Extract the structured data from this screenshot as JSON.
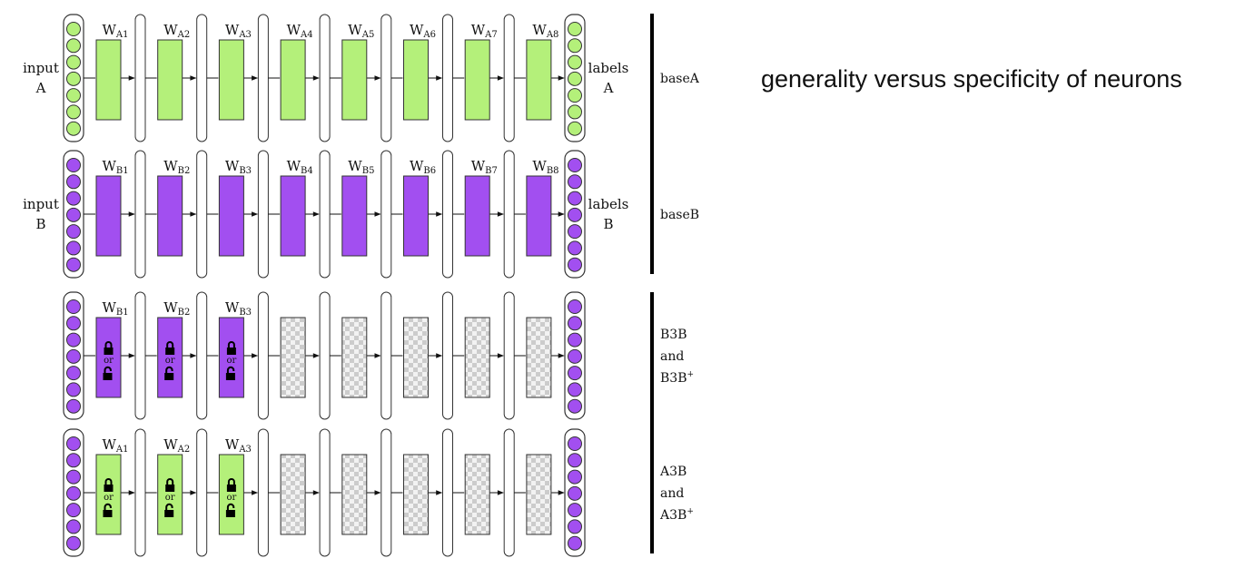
{
  "heading": "generality versus specificity of neurons",
  "colors": {
    "green": "#b4f07a",
    "purple": "#a24ff0",
    "checker_dark": "#cccccc",
    "checker_light": "#f2f2f2",
    "stroke": "#333333"
  },
  "lock_or": "or",
  "rows": [
    {
      "input_label": [
        "input",
        "A"
      ],
      "output_label": [
        "labels",
        "A"
      ],
      "input_color": "green",
      "output_color": "green",
      "blocks": [
        {
          "fill": "green",
          "label": "W",
          "sub": "A1"
        },
        {
          "fill": "green",
          "label": "W",
          "sub": "A2"
        },
        {
          "fill": "green",
          "label": "W",
          "sub": "A3"
        },
        {
          "fill": "green",
          "label": "W",
          "sub": "A4"
        },
        {
          "fill": "green",
          "label": "W",
          "sub": "A5"
        },
        {
          "fill": "green",
          "label": "W",
          "sub": "A6"
        },
        {
          "fill": "green",
          "label": "W",
          "sub": "A7"
        },
        {
          "fill": "green",
          "label": "W",
          "sub": "A8"
        }
      ],
      "side_label": [
        "baseA"
      ]
    },
    {
      "input_label": [
        "input",
        "B"
      ],
      "output_label": [
        "labels",
        "B"
      ],
      "input_color": "purple",
      "output_color": "purple",
      "blocks": [
        {
          "fill": "purple",
          "label": "W",
          "sub": "B1"
        },
        {
          "fill": "purple",
          "label": "W",
          "sub": "B2"
        },
        {
          "fill": "purple",
          "label": "W",
          "sub": "B3"
        },
        {
          "fill": "purple",
          "label": "W",
          "sub": "B4"
        },
        {
          "fill": "purple",
          "label": "W",
          "sub": "B5"
        },
        {
          "fill": "purple",
          "label": "W",
          "sub": "B6"
        },
        {
          "fill": "purple",
          "label": "W",
          "sub": "B7"
        },
        {
          "fill": "purple",
          "label": "W",
          "sub": "B8"
        }
      ],
      "side_label": [
        "baseB"
      ]
    },
    {
      "input_label": [],
      "output_label": [],
      "input_color": "purple",
      "output_color": "purple",
      "blocks": [
        {
          "fill": "purple",
          "label": "W",
          "sub": "B1",
          "lock": true
        },
        {
          "fill": "purple",
          "label": "W",
          "sub": "B2",
          "lock": true
        },
        {
          "fill": "purple",
          "label": "W",
          "sub": "B3",
          "lock": true
        },
        {
          "fill": "checker",
          "label": "",
          "sub": ""
        },
        {
          "fill": "checker",
          "label": "",
          "sub": ""
        },
        {
          "fill": "checker",
          "label": "",
          "sub": ""
        },
        {
          "fill": "checker",
          "label": "",
          "sub": ""
        },
        {
          "fill": "checker",
          "label": "",
          "sub": ""
        }
      ],
      "side_label": [
        "B3B",
        "and",
        "B3B"
      ],
      "side_sup": "+"
    },
    {
      "input_label": [],
      "output_label": [],
      "input_color": "purple",
      "output_color": "purple",
      "blocks": [
        {
          "fill": "green",
          "label": "W",
          "sub": "A1",
          "lock": true
        },
        {
          "fill": "green",
          "label": "W",
          "sub": "A2",
          "lock": true
        },
        {
          "fill": "green",
          "label": "W",
          "sub": "A3",
          "lock": true
        },
        {
          "fill": "checker",
          "label": "",
          "sub": ""
        },
        {
          "fill": "checker",
          "label": "",
          "sub": ""
        },
        {
          "fill": "checker",
          "label": "",
          "sub": ""
        },
        {
          "fill": "checker",
          "label": "",
          "sub": ""
        },
        {
          "fill": "checker",
          "label": "",
          "sub": ""
        }
      ],
      "side_label": [
        "A3B",
        "and",
        "A3B"
      ],
      "side_sup": "+"
    }
  ]
}
